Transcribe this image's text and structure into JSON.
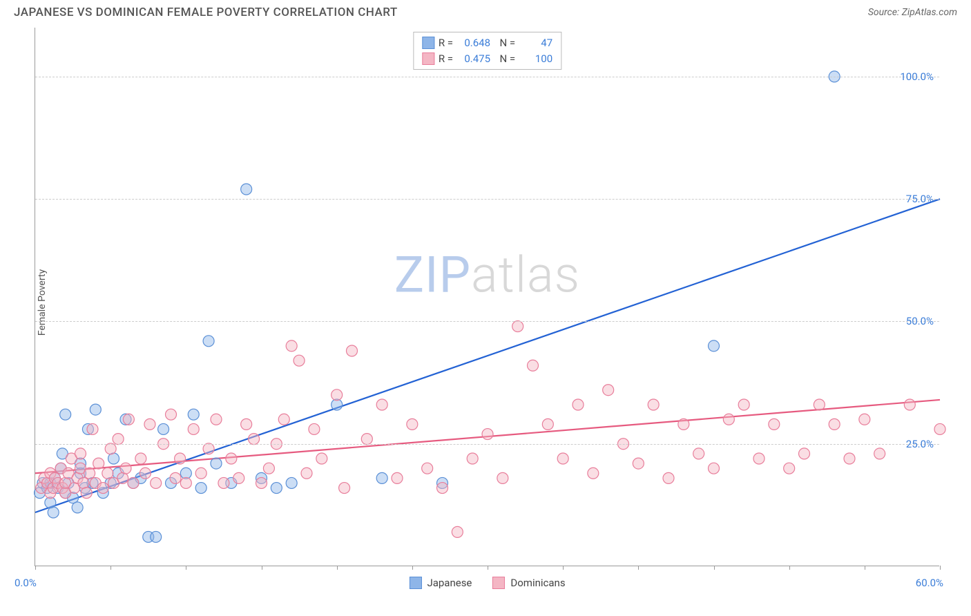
{
  "header": {
    "title": "JAPANESE VS DOMINICAN FEMALE POVERTY CORRELATION CHART",
    "source": "Source: ZipAtlas.com"
  },
  "chart": {
    "type": "scatter",
    "ylabel": "Female Poverty",
    "xlim": [
      0,
      60
    ],
    "ylim": [
      0,
      110
    ],
    "x_ticks": [
      0,
      5,
      10,
      15,
      20,
      25,
      30,
      35,
      40,
      45,
      50,
      55,
      60
    ],
    "x_tick_labels": {
      "0": "0.0%",
      "60": "60.0%"
    },
    "y_ticks": [
      25,
      50,
      75,
      100
    ],
    "y_tick_labels": {
      "25": "25.0%",
      "50": "50.0%",
      "75": "75.0%",
      "100": "100.0%"
    },
    "grid_color": "#cccccc",
    "axis_color": "#999999",
    "background_color": "#ffffff",
    "label_color": "#3b7dd8",
    "marker_radius": 8,
    "marker_opacity": 0.45,
    "marker_stroke_width": 1.2,
    "series": [
      {
        "name": "Japanese",
        "fill_color": "#8eb5e8",
        "stroke_color": "#5a8fd6",
        "line_color": "#2362d4",
        "line_width": 2.2,
        "trend": {
          "x1": 0,
          "y1": 11,
          "x2": 60,
          "y2": 75
        },
        "points": [
          [
            0.3,
            15
          ],
          [
            0.5,
            17
          ],
          [
            0.8,
            16
          ],
          [
            1,
            13
          ],
          [
            1,
            17
          ],
          [
            1.2,
            11
          ],
          [
            1.3,
            18
          ],
          [
            1.5,
            16
          ],
          [
            1.7,
            20
          ],
          [
            1.8,
            23
          ],
          [
            2,
            15
          ],
          [
            2,
            31
          ],
          [
            2.2,
            17
          ],
          [
            2.5,
            14
          ],
          [
            2.8,
            12
          ],
          [
            3,
            19
          ],
          [
            3,
            21
          ],
          [
            3.3,
            16
          ],
          [
            3.5,
            28
          ],
          [
            3.8,
            17
          ],
          [
            4,
            32
          ],
          [
            4.5,
            15
          ],
          [
            5,
            17
          ],
          [
            5.2,
            22
          ],
          [
            5.5,
            19
          ],
          [
            6,
            30
          ],
          [
            6.5,
            17
          ],
          [
            7,
            18
          ],
          [
            7.5,
            6
          ],
          [
            8,
            6
          ],
          [
            8.5,
            28
          ],
          [
            9,
            17
          ],
          [
            10,
            19
          ],
          [
            10.5,
            31
          ],
          [
            11,
            16
          ],
          [
            11.5,
            46
          ],
          [
            12,
            21
          ],
          [
            13,
            17
          ],
          [
            14,
            77
          ],
          [
            15,
            18
          ],
          [
            16,
            16
          ],
          [
            17,
            17
          ],
          [
            20,
            33
          ],
          [
            23,
            18
          ],
          [
            27,
            17
          ],
          [
            45,
            45
          ],
          [
            53,
            100
          ]
        ]
      },
      {
        "name": "Dominicans",
        "fill_color": "#f4b6c4",
        "stroke_color": "#e87d9a",
        "line_color": "#e65a7f",
        "line_width": 2.2,
        "trend": {
          "x1": 0,
          "y1": 19,
          "x2": 60,
          "y2": 34
        },
        "points": [
          [
            0.4,
            16
          ],
          [
            0.6,
            18
          ],
          [
            0.8,
            17
          ],
          [
            1,
            15
          ],
          [
            1,
            19
          ],
          [
            1.2,
            16
          ],
          [
            1.3,
            18
          ],
          [
            1.5,
            17
          ],
          [
            1.7,
            20
          ],
          [
            1.8,
            16
          ],
          [
            2,
            15
          ],
          [
            2,
            17
          ],
          [
            2.2,
            19
          ],
          [
            2.4,
            22
          ],
          [
            2.6,
            16
          ],
          [
            2.8,
            18
          ],
          [
            3,
            20
          ],
          [
            3,
            23
          ],
          [
            3.2,
            17
          ],
          [
            3.4,
            15
          ],
          [
            3.6,
            19
          ],
          [
            3.8,
            28
          ],
          [
            4,
            17
          ],
          [
            4.2,
            21
          ],
          [
            4.5,
            16
          ],
          [
            4.8,
            19
          ],
          [
            5,
            24
          ],
          [
            5.2,
            17
          ],
          [
            5.5,
            26
          ],
          [
            5.8,
            18
          ],
          [
            6,
            20
          ],
          [
            6.2,
            30
          ],
          [
            6.5,
            17
          ],
          [
            7,
            22
          ],
          [
            7.3,
            19
          ],
          [
            7.6,
            29
          ],
          [
            8,
            17
          ],
          [
            8.5,
            25
          ],
          [
            9,
            31
          ],
          [
            9.3,
            18
          ],
          [
            9.6,
            22
          ],
          [
            10,
            17
          ],
          [
            10.5,
            28
          ],
          [
            11,
            19
          ],
          [
            11.5,
            24
          ],
          [
            12,
            30
          ],
          [
            12.5,
            17
          ],
          [
            13,
            22
          ],
          [
            13.5,
            18
          ],
          [
            14,
            29
          ],
          [
            14.5,
            26
          ],
          [
            15,
            17
          ],
          [
            15.5,
            20
          ],
          [
            16,
            25
          ],
          [
            16.5,
            30
          ],
          [
            17,
            45
          ],
          [
            17.5,
            42
          ],
          [
            18,
            19
          ],
          [
            18.5,
            28
          ],
          [
            19,
            22
          ],
          [
            20,
            35
          ],
          [
            20.5,
            16
          ],
          [
            21,
            44
          ],
          [
            22,
            26
          ],
          [
            23,
            33
          ],
          [
            24,
            18
          ],
          [
            25,
            29
          ],
          [
            26,
            20
          ],
          [
            27,
            16
          ],
          [
            28,
            7
          ],
          [
            29,
            22
          ],
          [
            30,
            27
          ],
          [
            31,
            18
          ],
          [
            32,
            49
          ],
          [
            33,
            41
          ],
          [
            34,
            29
          ],
          [
            35,
            22
          ],
          [
            36,
            33
          ],
          [
            37,
            19
          ],
          [
            38,
            36
          ],
          [
            39,
            25
          ],
          [
            40,
            21
          ],
          [
            41,
            33
          ],
          [
            42,
            18
          ],
          [
            43,
            29
          ],
          [
            44,
            23
          ],
          [
            45,
            20
          ],
          [
            46,
            30
          ],
          [
            47,
            33
          ],
          [
            48,
            22
          ],
          [
            49,
            29
          ],
          [
            50,
            20
          ],
          [
            51,
            23
          ],
          [
            52,
            33
          ],
          [
            53,
            29
          ],
          [
            54,
            22
          ],
          [
            55,
            30
          ],
          [
            56,
            23
          ],
          [
            58,
            33
          ],
          [
            60,
            28
          ]
        ]
      }
    ],
    "stat_legend": [
      {
        "swatch_fill": "#8eb5e8",
        "swatch_stroke": "#5a8fd6",
        "r": "0.648",
        "n": "47"
      },
      {
        "swatch_fill": "#f4b6c4",
        "swatch_stroke": "#e87d9a",
        "r": "0.475",
        "n": "100"
      }
    ],
    "bottom_legend": [
      {
        "swatch_fill": "#8eb5e8",
        "swatch_stroke": "#5a8fd6",
        "label": "Japanese"
      },
      {
        "swatch_fill": "#f4b6c4",
        "swatch_stroke": "#e87d9a",
        "label": "Dominicans"
      }
    ],
    "watermark": {
      "a": "ZIP",
      "b": "atlas"
    }
  }
}
